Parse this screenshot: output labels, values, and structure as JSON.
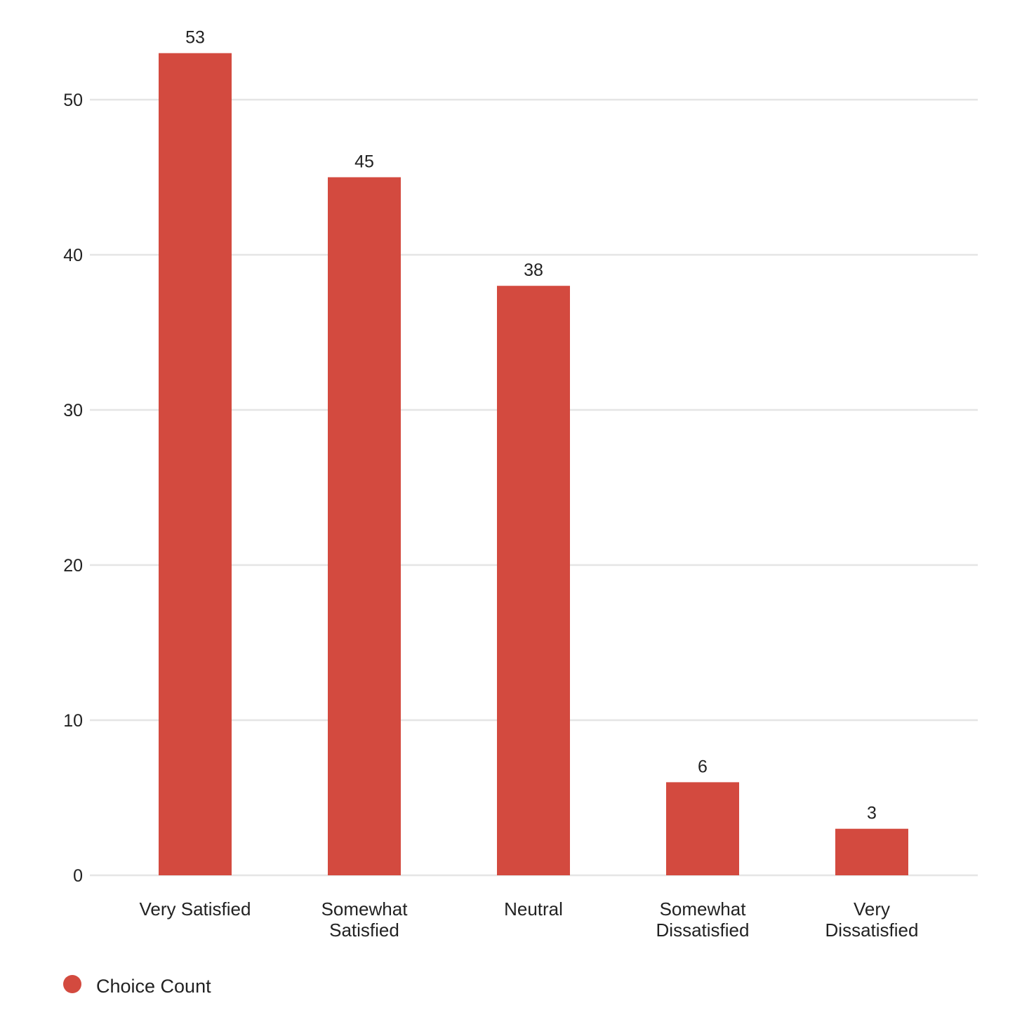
{
  "chart_data": {
    "type": "bar",
    "title": "",
    "xlabel": "",
    "ylabel": "",
    "categories": [
      [
        "Very Satisfied"
      ],
      [
        "Somewhat",
        "Satisfied"
      ],
      [
        "Neutral"
      ],
      [
        "Somewhat",
        "Dissatisfied"
      ],
      [
        "Very",
        "Dissatisfied"
      ]
    ],
    "series": [
      {
        "name": "Choice Count",
        "values": [
          53,
          45,
          38,
          6,
          3
        ],
        "color": "#D34A3F"
      }
    ],
    "ylim": [
      0,
      53
    ],
    "yticks": [
      0,
      10,
      20,
      30,
      40,
      50
    ],
    "grid": true,
    "data_labels": true,
    "legend_position": "bottom-left",
    "gridline_color": "#E5E5E5"
  }
}
